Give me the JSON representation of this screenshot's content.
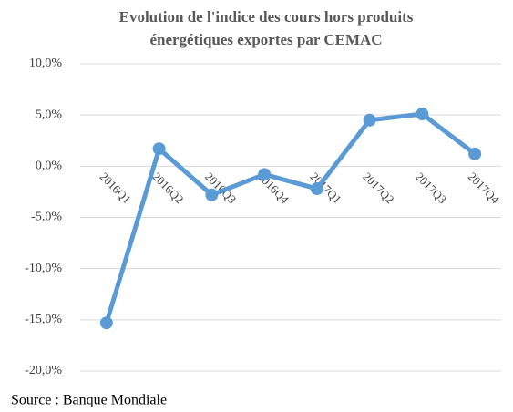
{
  "chart_data": {
    "type": "line",
    "title": [
      "Evolution de l'indice des cours hors produits",
      "énergétiques  exportes par CEMAC"
    ],
    "categories": [
      "2016Q1",
      "2016Q2",
      "2016Q3",
      "2016Q4",
      "2017Q1",
      "2017Q2",
      "2017Q3",
      "2017Q4"
    ],
    "series": [
      {
        "name": null,
        "color": "#5b9bd5",
        "values": [
          -15.3,
          1.7,
          -2.8,
          -0.8,
          -2.2,
          4.5,
          5.1,
          1.2
        ]
      }
    ],
    "ylim": [
      -20,
      10
    ],
    "yticks": [
      {
        "value": -20,
        "label": "-20,0%"
      },
      {
        "value": -15,
        "label": "-15,0%"
      },
      {
        "value": -10,
        "label": "-10,0%"
      },
      {
        "value": -5,
        "label": "-5,0%"
      },
      {
        "value": 0,
        "label": "0,0%"
      },
      {
        "value": 5,
        "label": "5,0%"
      },
      {
        "value": 10,
        "label": "10,0%"
      }
    ],
    "grid": true,
    "source": "Source : Banque Mondiale"
  }
}
